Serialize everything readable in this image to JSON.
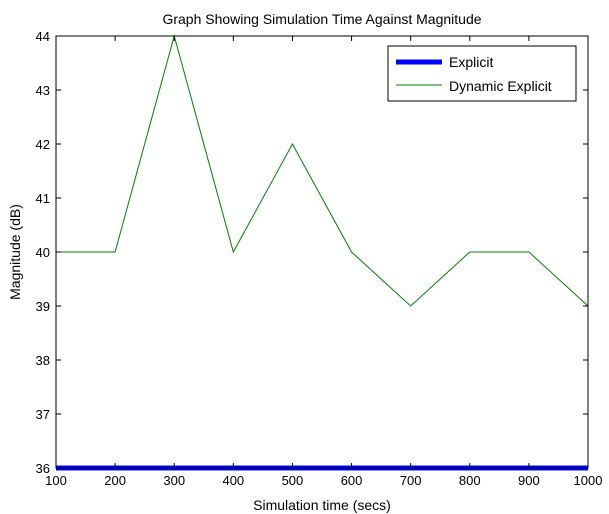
{
  "chart_data": {
    "type": "line",
    "title": "Graph Showing Simulation Time Against Magnitude",
    "xlabel": "Simulation time (secs)",
    "ylabel": "Magnitude (dB)",
    "xlim": [
      100,
      1000
    ],
    "ylim": [
      36,
      44
    ],
    "xticks": [
      100,
      200,
      300,
      400,
      500,
      600,
      700,
      800,
      900,
      1000
    ],
    "yticks": [
      36,
      37,
      38,
      39,
      40,
      41,
      42,
      43,
      44
    ],
    "grid": false,
    "legend_position": "top-right",
    "x": [
      100,
      200,
      300,
      400,
      500,
      600,
      700,
      800,
      900,
      1000
    ],
    "series": [
      {
        "name": "Explicit",
        "color": "#0000ff",
        "values": [
          36,
          36,
          36,
          36,
          36,
          36,
          36,
          36,
          36,
          36
        ]
      },
      {
        "name": "Dynamic Explicit",
        "color": "#008000",
        "values": [
          40,
          40,
          44,
          40,
          42,
          40,
          39,
          40,
          40,
          39
        ]
      }
    ]
  }
}
